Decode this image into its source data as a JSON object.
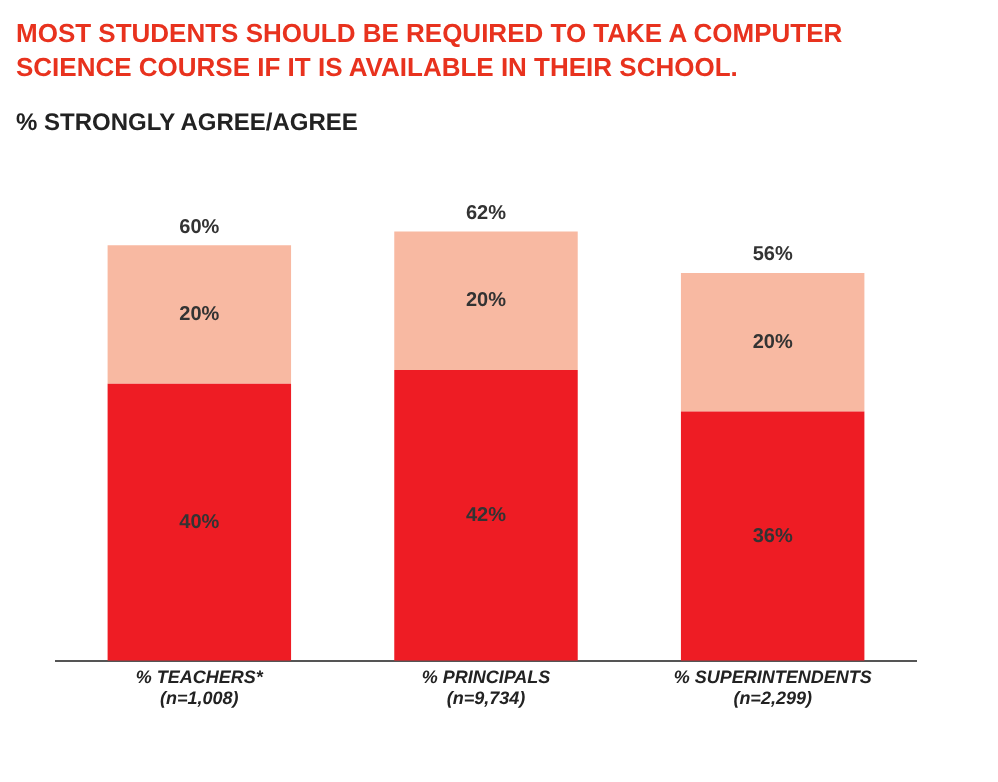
{
  "chart_data": {
    "type": "bar",
    "title": "MOST STUDENTS SHOULD BE REQUIRED TO TAKE A COMPUTER SCIENCE COURSE IF IT IS AVAILABLE IN THEIR SCHOOL.",
    "subtitle": "% STRONGLY AGREE/AGREE",
    "categories": [
      "% TEACHERS*\n(n=1,008)",
      "% PRINCIPALS\n(n=9,734)",
      "% SUPERINTENDENTS\n(n=2,299)"
    ],
    "stacked": true,
    "grid": false,
    "legend": false,
    "series": [
      {
        "color": "#ee1c24",
        "values": [
          40,
          42,
          36
        ],
        "value_labels": [
          "40%",
          "42%",
          "36%"
        ]
      },
      {
        "color": "#f8b9a2",
        "values": [
          20,
          20,
          20
        ],
        "value_labels": [
          "20%",
          "20%",
          "20%"
        ]
      }
    ],
    "totals": [
      "60%",
      "62%",
      "56%"
    ]
  }
}
